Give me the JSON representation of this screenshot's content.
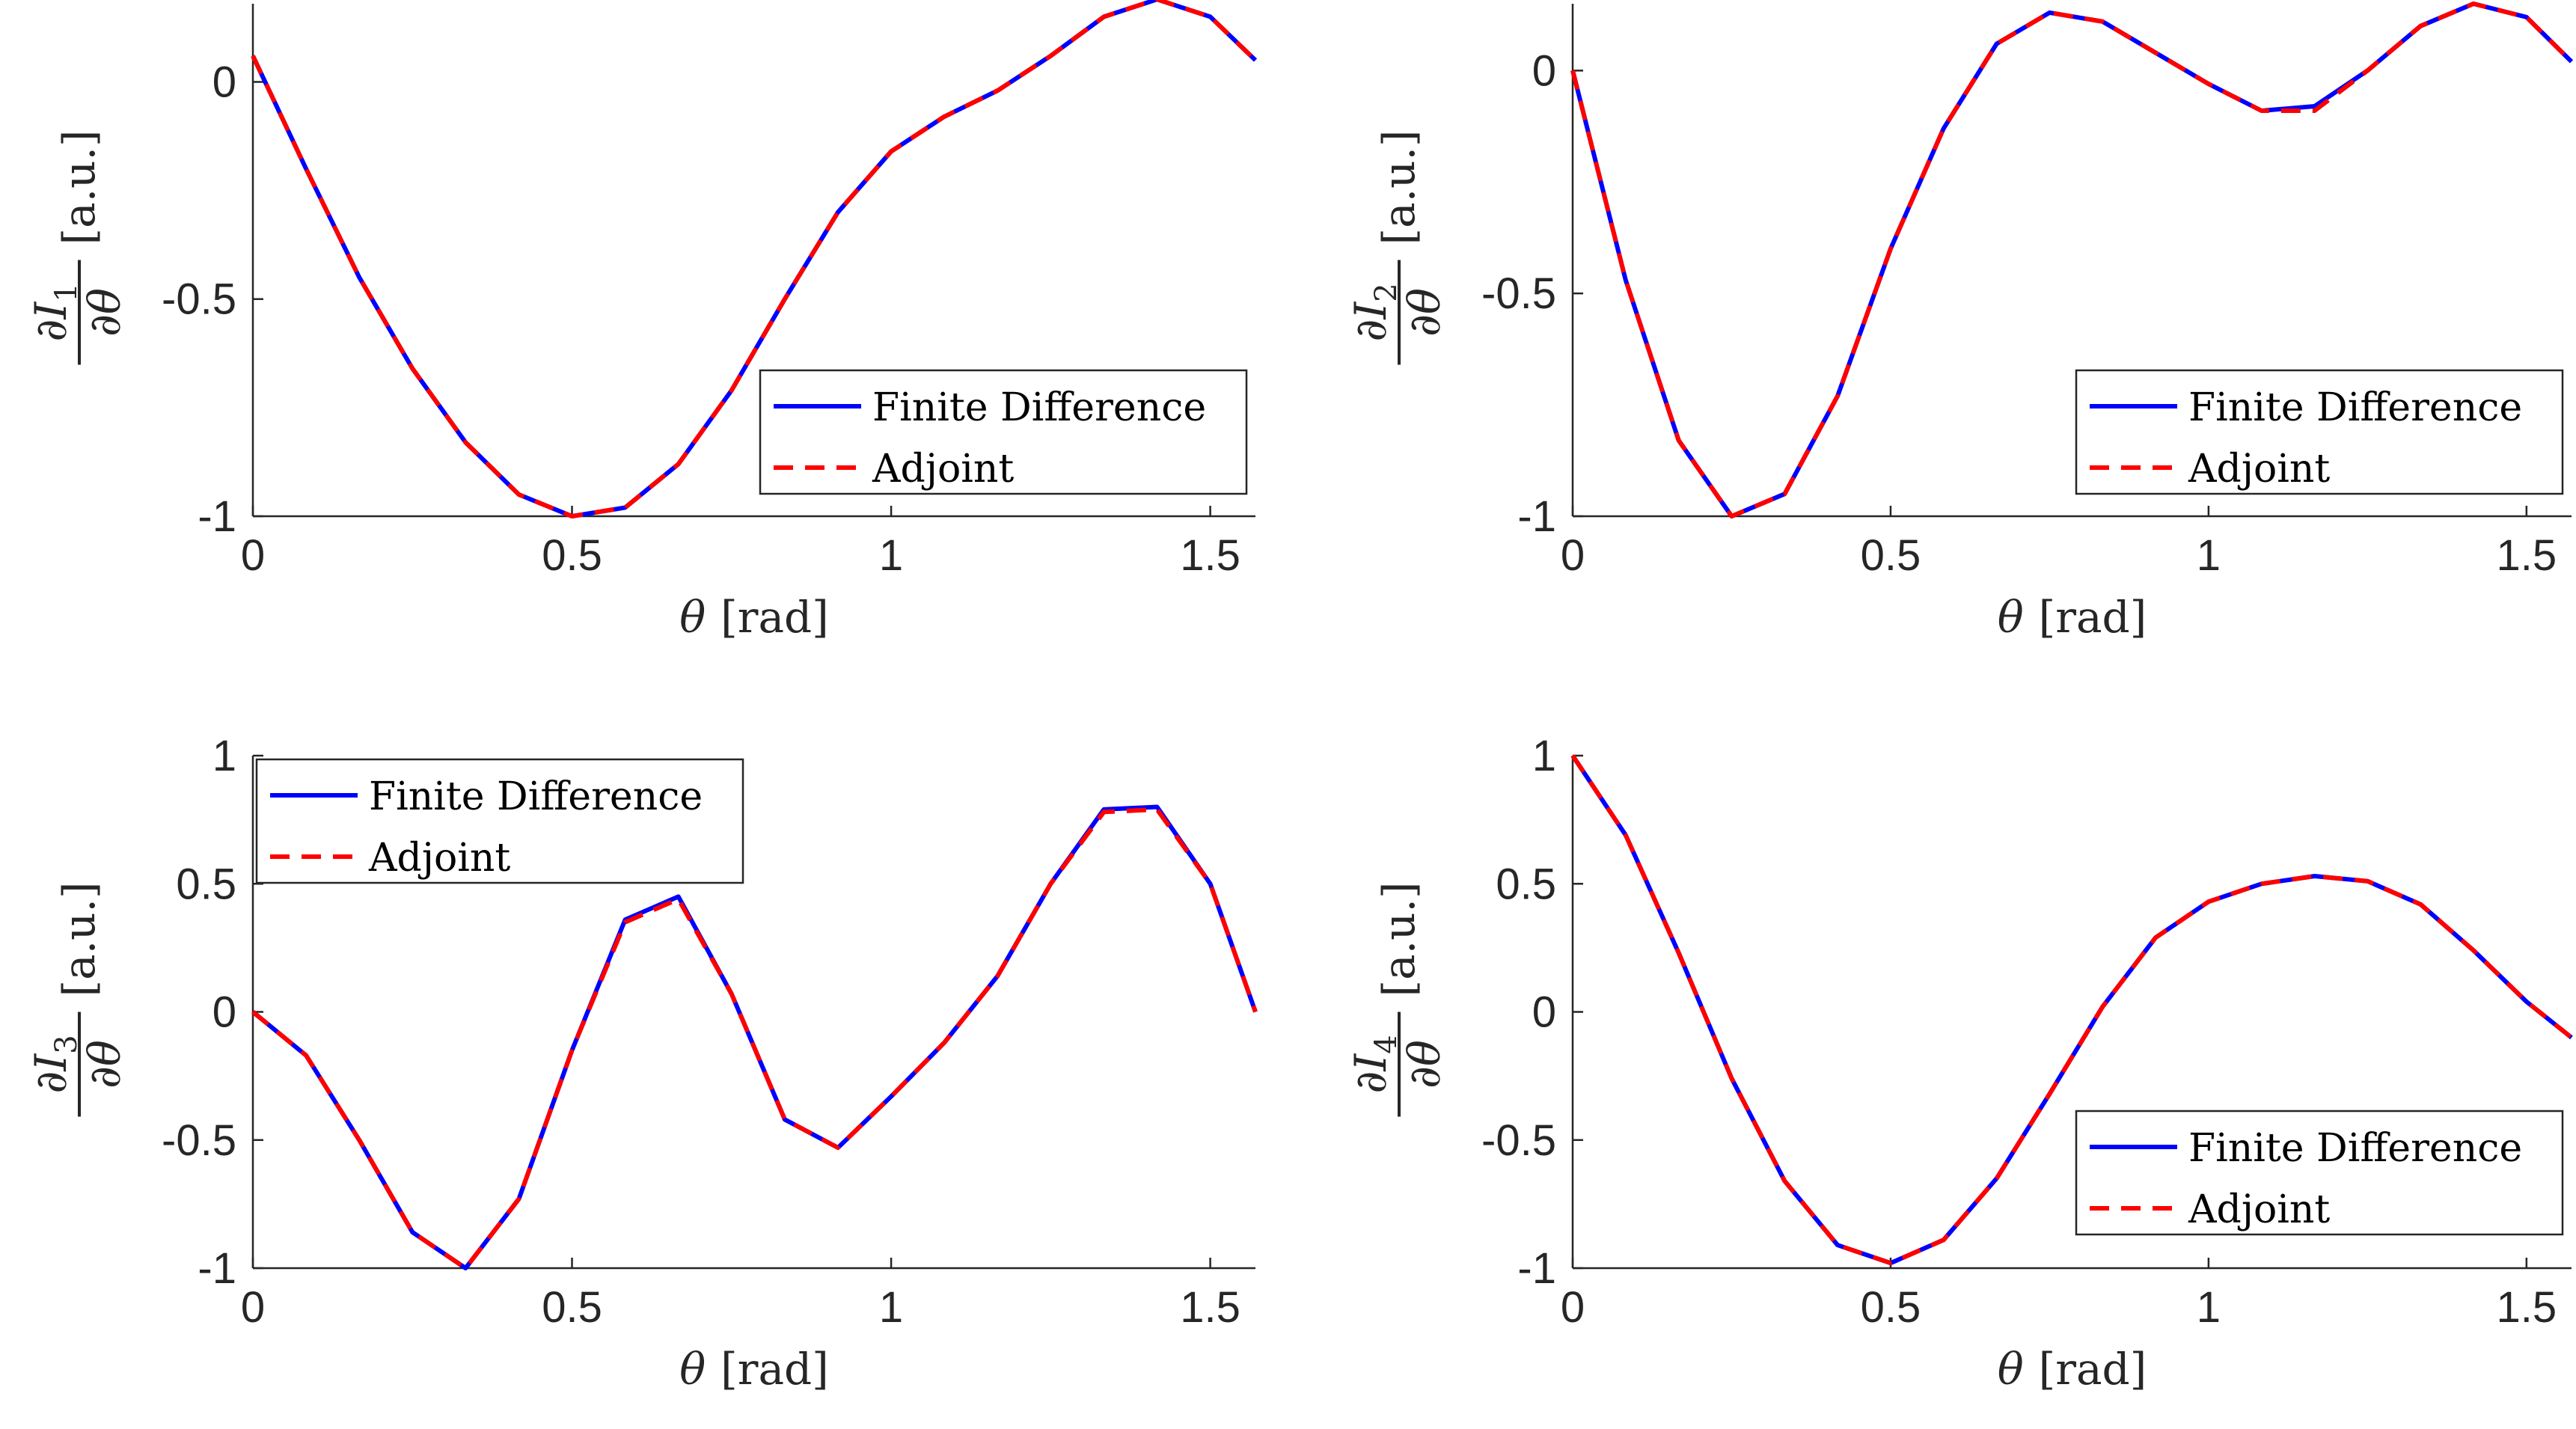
{
  "chart_data": [
    {
      "type": "line",
      "ylabel_text": "∂I",
      "ylabel_sub": "1",
      "ylabel_den": "∂θ",
      "ylabel_unit": "[a.u.]",
      "xlabel_symbol": "θ",
      "xlabel_unit": "[rad]",
      "xlim": [
        0,
        1.5708
      ],
      "ylim": [
        -1,
        0.18
      ],
      "xticks": [
        0,
        0.5,
        1,
        1.5
      ],
      "xtick_labels": [
        "0",
        "0.5",
        "1",
        "1.5"
      ],
      "yticks": [
        -1,
        -0.5,
        0
      ],
      "ytick_labels": [
        "-1",
        "-0.5",
        "0"
      ],
      "legend_position": "middle-right",
      "legend": [
        "Finite Difference",
        "Adjoint"
      ],
      "x": [
        0,
        0.0833,
        0.1667,
        0.25,
        0.3333,
        0.4167,
        0.5,
        0.5833,
        0.6667,
        0.75,
        0.8333,
        0.9167,
        1.0,
        1.0833,
        1.1667,
        1.25,
        1.3333,
        1.4167,
        1.5,
        1.5708
      ],
      "series": [
        {
          "name": "Finite Difference",
          "color": "#0000ff",
          "dash": "solid",
          "values": [
            0.06,
            -0.2,
            -0.45,
            -0.66,
            -0.83,
            -0.95,
            -1.0,
            -0.98,
            -0.88,
            -0.71,
            -0.5,
            -0.3,
            -0.16,
            -0.08,
            -0.02,
            0.06,
            0.15,
            0.19,
            0.15,
            0.05
          ]
        },
        {
          "name": "Adjoint",
          "color": "#ff0000",
          "dash": "dashed",
          "values": [
            0.06,
            -0.2,
            -0.45,
            -0.66,
            -0.83,
            -0.95,
            -1.0,
            -0.98,
            -0.88,
            -0.71,
            -0.5,
            -0.3,
            -0.16,
            -0.08,
            -0.02,
            0.06,
            0.15,
            0.19,
            0.15,
            0.05
          ]
        }
      ]
    },
    {
      "type": "line",
      "ylabel_text": "∂I",
      "ylabel_sub": "2",
      "ylabel_den": "∂θ",
      "ylabel_unit": "[a.u.]",
      "xlabel_symbol": "θ",
      "xlabel_unit": "[rad]",
      "xlim": [
        0,
        1.5708
      ],
      "ylim": [
        -1,
        0.15
      ],
      "xticks": [
        0,
        0.5,
        1,
        1.5
      ],
      "xtick_labels": [
        "0",
        "0.5",
        "1",
        "1.5"
      ],
      "yticks": [
        -1,
        -0.5,
        0
      ],
      "ytick_labels": [
        "-1",
        "-0.5",
        "0"
      ],
      "legend_position": "middle-right",
      "legend": [
        "Finite Difference",
        "Adjoint"
      ],
      "x": [
        0,
        0.0833,
        0.1667,
        0.25,
        0.3333,
        0.4167,
        0.5,
        0.5833,
        0.6667,
        0.75,
        0.8333,
        0.9167,
        1.0,
        1.0833,
        1.1667,
        1.25,
        1.3333,
        1.4167,
        1.5,
        1.5708
      ],
      "series": [
        {
          "name": "Finite Difference",
          "color": "#0000ff",
          "dash": "solid",
          "values": [
            0.0,
            -0.47,
            -0.83,
            -1.0,
            -0.95,
            -0.73,
            -0.4,
            -0.13,
            0.06,
            0.13,
            0.11,
            0.04,
            -0.03,
            -0.09,
            -0.08,
            0.0,
            0.1,
            0.15,
            0.12,
            0.02
          ]
        },
        {
          "name": "Adjoint",
          "color": "#ff0000",
          "dash": "dashed",
          "values": [
            0.0,
            -0.47,
            -0.83,
            -1.0,
            -0.95,
            -0.73,
            -0.4,
            -0.13,
            0.06,
            0.13,
            0.11,
            0.04,
            -0.03,
            -0.09,
            -0.09,
            0.0,
            0.1,
            0.15,
            0.12,
            0.02
          ]
        }
      ]
    },
    {
      "type": "line",
      "ylabel_text": "∂I",
      "ylabel_sub": "3",
      "ylabel_den": "∂θ",
      "ylabel_unit": "[a.u.]",
      "xlabel_symbol": "θ",
      "xlabel_unit": "[rad]",
      "xlim": [
        0,
        1.5708
      ],
      "ylim": [
        -1,
        1
      ],
      "xticks": [
        0,
        0.5,
        1,
        1.5
      ],
      "xtick_labels": [
        "0",
        "0.5",
        "1",
        "1.5"
      ],
      "yticks": [
        -1,
        -0.5,
        0,
        0.5,
        1
      ],
      "ytick_labels": [
        "-1",
        "-0.5",
        "0",
        "0.5",
        "1"
      ],
      "legend_position": "top-left",
      "legend": [
        "Finite Difference",
        "Adjoint"
      ],
      "x": [
        0,
        0.0833,
        0.1667,
        0.25,
        0.3333,
        0.4167,
        0.5,
        0.5833,
        0.6667,
        0.75,
        0.8333,
        0.9167,
        1.0,
        1.0833,
        1.1667,
        1.25,
        1.3333,
        1.4167,
        1.5,
        1.5708
      ],
      "series": [
        {
          "name": "Finite Difference",
          "color": "#0000ff",
          "dash": "solid",
          "values": [
            0.0,
            -0.17,
            -0.5,
            -0.86,
            -1.0,
            -0.73,
            -0.15,
            0.36,
            0.45,
            0.07,
            -0.42,
            -0.53,
            -0.33,
            -0.12,
            0.14,
            0.5,
            0.79,
            0.8,
            0.5,
            0.0
          ]
        },
        {
          "name": "Adjoint",
          "color": "#ff0000",
          "dash": "dashed",
          "values": [
            0.0,
            -0.17,
            -0.5,
            -0.86,
            -1.0,
            -0.73,
            -0.15,
            0.35,
            0.44,
            0.07,
            -0.42,
            -0.53,
            -0.33,
            -0.12,
            0.14,
            0.5,
            0.78,
            0.79,
            0.5,
            0.0
          ]
        }
      ]
    },
    {
      "type": "line",
      "ylabel_text": "∂I",
      "ylabel_sub": "4",
      "ylabel_den": "∂θ",
      "ylabel_unit": "[a.u.]",
      "xlabel_symbol": "θ",
      "xlabel_unit": "[rad]",
      "xlim": [
        0,
        1.5708
      ],
      "ylim": [
        -1,
        1
      ],
      "xticks": [
        0,
        0.5,
        1,
        1.5
      ],
      "xtick_labels": [
        "0",
        "0.5",
        "1",
        "1.5"
      ],
      "yticks": [
        -1,
        -0.5,
        0,
        0.5,
        1
      ],
      "ytick_labels": [
        "-1",
        "-0.5",
        "0",
        "0.5",
        "1"
      ],
      "legend_position": "bottom-right",
      "legend": [
        "Finite Difference",
        "Adjoint"
      ],
      "x": [
        0,
        0.0833,
        0.1667,
        0.25,
        0.3333,
        0.4167,
        0.5,
        0.5833,
        0.6667,
        0.75,
        0.8333,
        0.9167,
        1.0,
        1.0833,
        1.1667,
        1.25,
        1.3333,
        1.4167,
        1.5,
        1.5708
      ],
      "series": [
        {
          "name": "Finite Difference",
          "color": "#0000ff",
          "dash": "solid",
          "values": [
            1.0,
            0.69,
            0.23,
            -0.26,
            -0.66,
            -0.91,
            -0.98,
            -0.89,
            -0.65,
            -0.32,
            0.02,
            0.29,
            0.43,
            0.5,
            0.53,
            0.51,
            0.42,
            0.24,
            0.04,
            -0.1
          ]
        },
        {
          "name": "Adjoint",
          "color": "#ff0000",
          "dash": "dashed",
          "values": [
            1.0,
            0.69,
            0.23,
            -0.26,
            -0.66,
            -0.91,
            -0.98,
            -0.89,
            -0.65,
            -0.32,
            0.02,
            0.29,
            0.43,
            0.5,
            0.53,
            0.51,
            0.42,
            0.24,
            0.04,
            -0.1
          ]
        }
      ]
    }
  ]
}
